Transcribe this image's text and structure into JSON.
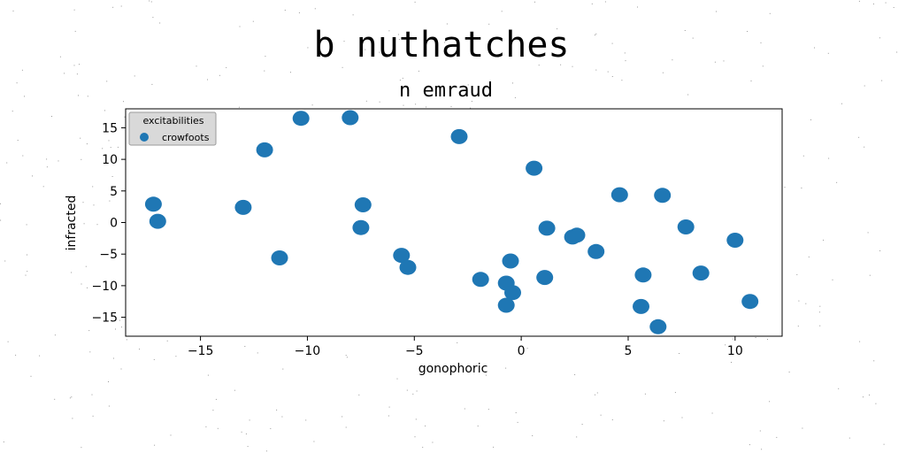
{
  "chart_data": {
    "type": "scatter",
    "suptitle": "b nuthatches",
    "title": "n emraud",
    "xlabel": "gonophoric",
    "ylabel": "infracted",
    "xlim": [
      -18.5,
      12.2
    ],
    "ylim": [
      -18.0,
      18.0
    ],
    "xticks": [
      -15,
      -10,
      -5,
      0,
      5,
      10
    ],
    "yticks": [
      -15,
      -10,
      -5,
      0,
      5,
      10,
      15
    ],
    "xtick_labels": [
      "−15",
      "−10",
      "−5",
      "0",
      "5",
      "10"
    ],
    "ytick_labels": [
      "−15",
      "−10",
      "−5",
      "0",
      "5",
      "10",
      "15"
    ],
    "grid": false,
    "legend": {
      "title": "excitabilities",
      "placement": "top-left"
    },
    "series": [
      {
        "name": "crowfoots",
        "color": "#1f77b4",
        "points": [
          [
            -17.2,
            2.9
          ],
          [
            -17.0,
            0.2
          ],
          [
            -13.0,
            2.4
          ],
          [
            -12.0,
            11.5
          ],
          [
            -11.3,
            -5.6
          ],
          [
            -10.3,
            16.5
          ],
          [
            -8.0,
            16.6
          ],
          [
            -7.4,
            2.8
          ],
          [
            -7.5,
            -0.8
          ],
          [
            -5.6,
            -5.2
          ],
          [
            -5.3,
            -7.1
          ],
          [
            -2.9,
            13.6
          ],
          [
            -1.9,
            -9.0
          ],
          [
            -0.7,
            -13.1
          ],
          [
            -0.7,
            -9.6
          ],
          [
            -0.5,
            -6.1
          ],
          [
            -0.4,
            -11.1
          ],
          [
            0.6,
            8.6
          ],
          [
            1.2,
            -0.9
          ],
          [
            1.1,
            -8.7
          ],
          [
            2.4,
            -2.3
          ],
          [
            2.6,
            -2.0
          ],
          [
            3.5,
            -4.6
          ],
          [
            4.6,
            4.4
          ],
          [
            5.7,
            -8.3
          ],
          [
            5.6,
            -13.3
          ],
          [
            6.6,
            4.3
          ],
          [
            6.4,
            -16.5
          ],
          [
            7.7,
            -0.7
          ],
          [
            8.4,
            -8.0
          ],
          [
            10.0,
            -2.8
          ],
          [
            10.7,
            -12.5
          ]
        ]
      }
    ]
  }
}
